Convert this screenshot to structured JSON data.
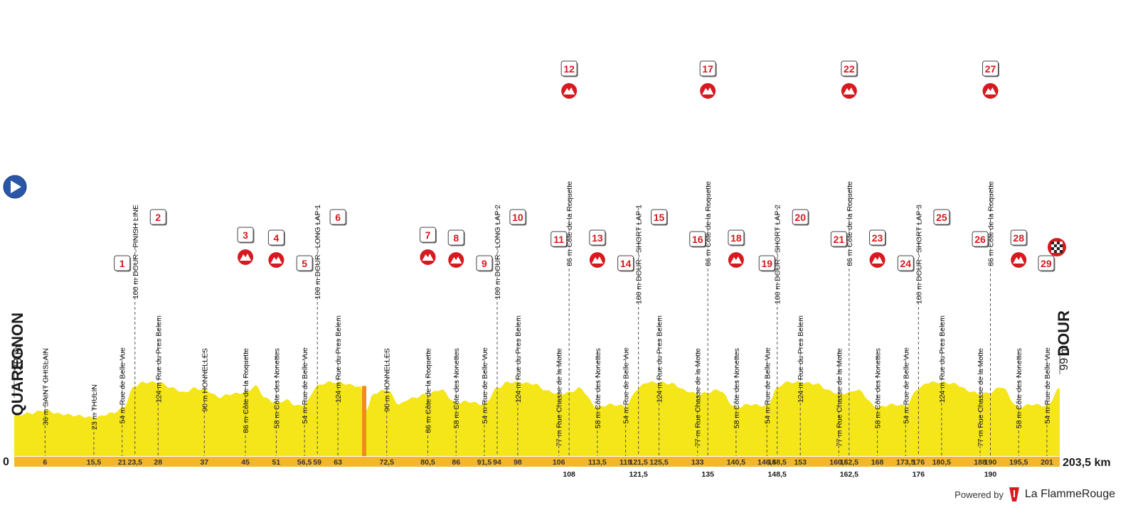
{
  "start": {
    "name": "QUAREGNON",
    "altitude": "28 m"
  },
  "finish": {
    "name": "DOUR",
    "altitude": "99 m"
  },
  "axis": {
    "zero": "0",
    "end": "203,5 km"
  },
  "km_ticks": [
    "6",
    "15,5",
    "21",
    "23,5",
    "28",
    "37",
    "45",
    "51",
    "56,5",
    "59",
    "63",
    "72,5",
    "80,5",
    "86",
    "91,5",
    "94",
    "98",
    "106",
    "113,5",
    "119",
    "121,5",
    "125,5",
    "133",
    "140,5",
    "146,5",
    "148,5",
    "153",
    "160,5",
    "162,5",
    "168",
    "173,5",
    "176",
    "180,5",
    "188",
    "190",
    "195,5",
    "201"
  ],
  "km_ticks_lower": [
    "108",
    "121,5",
    "135",
    "148,5",
    "162,5",
    "176",
    "190"
  ],
  "waypoints": [
    {
      "label": "36 m SAINT GHISLAIN"
    },
    {
      "label": "23 m THULIN"
    },
    {
      "label": "54 m Rue de Belle Vue",
      "num": "1"
    },
    {
      "label": "100 m DOUR - FINISH LINE"
    },
    {
      "label": "124 m Rue du Pres Belem",
      "num": "2"
    },
    {
      "label": "90 m HONNELLES"
    },
    {
      "label": "86 m Côte de la Roquette",
      "num": "3",
      "climb": true
    },
    {
      "label": "58 m Côte des Nonettes",
      "num": "4",
      "climb": true
    },
    {
      "label": "54 m Rue de Belle Vue",
      "num": "5"
    },
    {
      "label": "100 m DOUR - LONG LAP 1"
    },
    {
      "label": "124 m Rue du Pres Belem",
      "num": "6"
    },
    {
      "label": "90 m HONNELLES"
    },
    {
      "label": "86 m Côte de la Roquette",
      "num": "7",
      "climb": true
    },
    {
      "label": "58 m Côte des Nonettes",
      "num": "8",
      "climb": true
    },
    {
      "label": "54 m Rue de Belle Vue",
      "num": "9"
    },
    {
      "label": "100 m DOUR - LONG LAP 2"
    },
    {
      "label": "124 m Rue du Pres Belem",
      "num": "10"
    },
    {
      "label": "77 m Rue Chasse de la Motte",
      "num": "11"
    },
    {
      "label": "86 m Côte de la Roquette",
      "num": "12",
      "climb": true
    },
    {
      "label": "58 m Côte des Nonettes",
      "num": "13",
      "climb": true
    },
    {
      "label": "54 m Rue de Belle Vue",
      "num": "14"
    },
    {
      "label": "100 m DOUR - SHORT LAP 1"
    },
    {
      "label": "124 m Rue du Pres Belem",
      "num": "15"
    },
    {
      "label": "77 m Rue Chasse de la Motte",
      "num": "16"
    },
    {
      "label": "86 m Côte de la Roquette",
      "num": "17",
      "climb": true
    },
    {
      "label": "58 m Côte des Nonettes",
      "num": "18",
      "climb": true
    },
    {
      "label": "54 m Rue de Belle Vue",
      "num": "19"
    },
    {
      "label": "100 m DOUR - SHORT LAP 2"
    },
    {
      "label": "124 m Rue du Pres Belem",
      "num": "20"
    },
    {
      "label": "77 m Rue Chasse de la Motte",
      "num": "21"
    },
    {
      "label": "86 m Côte de la Roquette",
      "num": "22",
      "climb": true
    },
    {
      "label": "58 m Côte des Nonettes",
      "num": "23",
      "climb": true
    },
    {
      "label": "54 m Rue de Belle Vue",
      "num": "24"
    },
    {
      "label": "100 m DOUR - SHORT LAP 3"
    },
    {
      "label": "124 m Rue du Pres Belem",
      "num": "25"
    },
    {
      "label": "77 m Rue Chasse de la Motte",
      "num": "26"
    },
    {
      "label": "86 m Côte de la Roquette",
      "num": "27",
      "climb": true
    },
    {
      "label": "58 m Côte des Nonettes",
      "num": "28",
      "climb": true
    },
    {
      "label": "54 m Rue de Belle Vue",
      "num": "29",
      "finish": true
    }
  ],
  "powered": {
    "text": "Powered by",
    "brand": "La FlammeRouge"
  },
  "colors": {
    "profile": "#f5e61a",
    "axis": "#f3b72b",
    "accent": "#d71920",
    "start_icon": "#2a56a8",
    "sprint_zone": "#f08a1c"
  }
}
